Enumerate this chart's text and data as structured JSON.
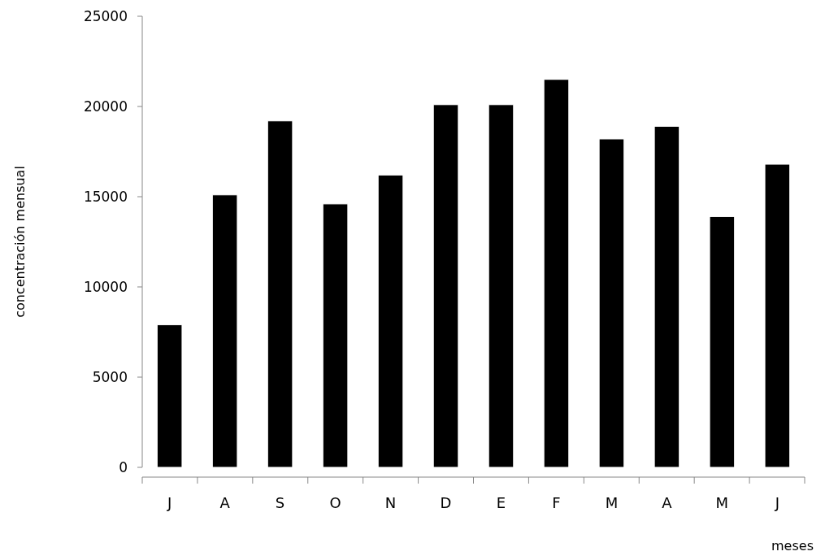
{
  "chart_data": {
    "type": "bar",
    "xlabel": "meses",
    "ylabel": "concentración mensual",
    "categories": [
      "J",
      "A",
      "S",
      "O",
      "N",
      "D",
      "E",
      "F",
      "M",
      "A",
      "M",
      "J"
    ],
    "values": [
      7900,
      15100,
      19200,
      14600,
      16200,
      20100,
      20100,
      21500,
      18200,
      18900,
      13900,
      16800
    ],
    "color": "#000000",
    "ylim": [
      0,
      25000
    ],
    "yticks": [
      0,
      5000,
      10000,
      15000,
      20000,
      25000
    ],
    "grid": false
  }
}
